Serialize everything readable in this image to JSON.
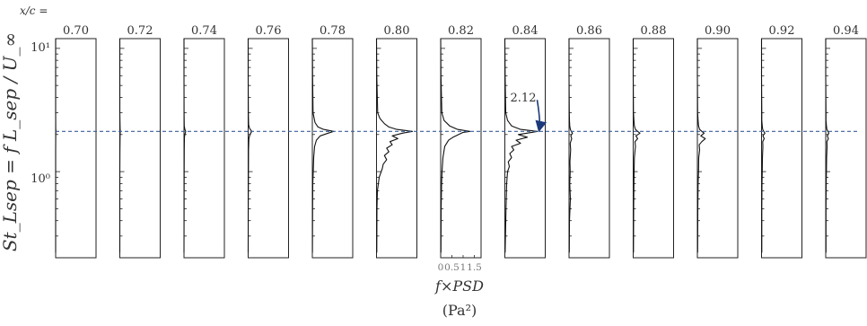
{
  "chart_data": {
    "type": "line",
    "x_header": "x/c =",
    "panels": [
      "0.70",
      "0.72",
      "0.74",
      "0.76",
      "0.78",
      "0.80",
      "0.82",
      "0.84",
      "0.86",
      "0.88",
      "0.90",
      "0.92",
      "0.94"
    ],
    "y_scale": "log",
    "y_range": [
      0.2,
      12
    ],
    "y_ticks": [
      1,
      10
    ],
    "y_tick_labels": [
      "10⁰",
      "10¹"
    ],
    "ylabel": "St_Lsep = f L_sep / U_∞",
    "x_range": [
      0,
      1.8
    ],
    "x_ticks": [
      0,
      0.5,
      1,
      1.5
    ],
    "x_tick_labels": [
      "0",
      "0.5",
      "1",
      "1.5"
    ],
    "x_ticks_panel": "0.82",
    "xlabel_line1": "f×PSD",
    "xlabel_line2": "(Pa²)",
    "reference_line": {
      "value": 2.12,
      "label": "2.12",
      "panel": "0.84",
      "style": "dashed",
      "color": "#3a5f9a"
    },
    "annotation_color": "#1c3a7a",
    "series": [
      {
        "panel": "0.70",
        "y": [
          0.22,
          0.5,
          1.0,
          1.5,
          2.0,
          2.12,
          2.25,
          3,
          6,
          12
        ],
        "x": [
          0,
          0,
          0,
          0,
          0.005,
          0.01,
          0.005,
          0,
          0,
          0
        ]
      },
      {
        "panel": "0.72",
        "y": [
          0.22,
          0.5,
          1.0,
          1.5,
          2.0,
          2.12,
          2.25,
          3,
          6,
          12
        ],
        "x": [
          0,
          0,
          0,
          0.002,
          0.01,
          0.02,
          0.01,
          0,
          0,
          0
        ]
      },
      {
        "panel": "0.74",
        "y": [
          0.22,
          0.5,
          1.0,
          1.5,
          1.9,
          2.05,
          2.12,
          2.2,
          2.35,
          3,
          6,
          12
        ],
        "x": [
          0,
          0.005,
          0.008,
          0.01,
          0.02,
          0.05,
          0.08,
          0.04,
          0.01,
          0.005,
          0,
          0
        ]
      },
      {
        "panel": "0.76",
        "y": [
          0.22,
          0.5,
          1.0,
          1.5,
          1.85,
          2.0,
          2.12,
          2.25,
          2.4,
          3,
          6,
          12
        ],
        "x": [
          0,
          0.005,
          0.01,
          0.015,
          0.03,
          0.08,
          0.16,
          0.06,
          0.02,
          0.008,
          0,
          0
        ]
      },
      {
        "panel": "0.78",
        "y": [
          0.22,
          0.5,
          0.8,
          1.0,
          1.3,
          1.6,
          1.8,
          1.95,
          2.05,
          2.12,
          2.2,
          2.3,
          2.5,
          3,
          6,
          12
        ],
        "x": [
          0.005,
          0.01,
          0.02,
          0.04,
          0.06,
          0.1,
          0.18,
          0.35,
          0.7,
          0.95,
          0.5,
          0.25,
          0.12,
          0.03,
          0.01,
          0
        ]
      },
      {
        "panel": "0.80",
        "y": [
          0.22,
          0.5,
          0.7,
          0.9,
          1.05,
          1.15,
          1.25,
          1.35,
          1.45,
          1.55,
          1.65,
          1.75,
          1.85,
          1.95,
          2.05,
          2.12,
          2.2,
          2.3,
          2.45,
          2.7,
          3,
          6,
          12
        ],
        "x": [
          0.01,
          0.02,
          0.04,
          0.12,
          0.25,
          0.3,
          0.45,
          0.35,
          0.55,
          0.45,
          0.7,
          0.6,
          0.95,
          0.7,
          1.15,
          1.6,
          0.9,
          0.55,
          0.35,
          0.15,
          0.05,
          0.01,
          0
        ]
      },
      {
        "panel": "0.82",
        "y": [
          0.22,
          0.5,
          0.8,
          1.0,
          1.3,
          1.6,
          1.8,
          1.9,
          2.0,
          2.08,
          2.12,
          2.2,
          2.35,
          2.6,
          3,
          6,
          12
        ],
        "x": [
          0.01,
          0.02,
          0.04,
          0.06,
          0.1,
          0.18,
          0.35,
          0.55,
          0.8,
          1.0,
          1.3,
          0.75,
          0.4,
          0.15,
          0.05,
          0.01,
          0
        ]
      },
      {
        "panel": "0.84",
        "y": [
          0.22,
          0.5,
          0.8,
          1.0,
          1.1,
          1.2,
          1.3,
          1.4,
          1.5,
          1.6,
          1.7,
          1.8,
          1.9,
          2.0,
          2.08,
          2.12,
          2.2,
          2.35,
          2.6,
          3,
          6,
          12
        ],
        "x": [
          0.01,
          0.05,
          0.08,
          0.12,
          0.2,
          0.15,
          0.3,
          0.22,
          0.4,
          0.3,
          0.7,
          0.5,
          1.0,
          0.6,
          1.2,
          1.45,
          0.7,
          0.3,
          0.12,
          0.04,
          0.01,
          0
        ]
      },
      {
        "panel": "0.86",
        "y": [
          0.22,
          0.4,
          0.6,
          0.8,
          1.0,
          1.2,
          1.5,
          1.7,
          1.85,
          1.95,
          2.05,
          2.12,
          2.2,
          2.35,
          2.6,
          3,
          6,
          12
        ],
        "x": [
          0.01,
          0.02,
          0.06,
          0.03,
          0.05,
          0.04,
          0.07,
          0.05,
          0.12,
          0.08,
          0.15,
          0.1,
          0.06,
          0.03,
          0.02,
          0.01,
          0,
          0
        ]
      },
      {
        "panel": "0.88",
        "y": [
          0.22,
          0.5,
          0.8,
          1.0,
          1.3,
          1.6,
          1.75,
          1.85,
          1.95,
          2.05,
          2.12,
          2.2,
          2.35,
          2.6,
          3,
          6,
          12
        ],
        "x": [
          0.01,
          0.02,
          0.03,
          0.04,
          0.05,
          0.1,
          0.08,
          0.2,
          0.12,
          0.3,
          0.2,
          0.1,
          0.05,
          0.03,
          0.01,
          0,
          0
        ]
      },
      {
        "panel": "0.90",
        "y": [
          0.22,
          0.5,
          0.8,
          1.0,
          1.3,
          1.5,
          1.65,
          1.75,
          1.85,
          1.95,
          2.05,
          2.12,
          2.2,
          2.35,
          2.6,
          3,
          6,
          12
        ],
        "x": [
          0.01,
          0.02,
          0.03,
          0.05,
          0.06,
          0.1,
          0.08,
          0.2,
          0.35,
          0.15,
          0.3,
          0.2,
          0.1,
          0.05,
          0.03,
          0.01,
          0,
          0
        ]
      },
      {
        "panel": "0.92",
        "y": [
          0.22,
          0.5,
          0.8,
          1.0,
          1.3,
          1.6,
          1.75,
          1.85,
          1.95,
          2.05,
          2.12,
          2.2,
          2.35,
          2.6,
          3,
          6,
          12
        ],
        "x": [
          0.01,
          0.01,
          0.02,
          0.03,
          0.04,
          0.06,
          0.05,
          0.12,
          0.06,
          0.15,
          0.1,
          0.05,
          0.03,
          0.01,
          0.01,
          0,
          0
        ]
      },
      {
        "panel": "0.94",
        "y": [
          0.22,
          0.5,
          0.8,
          1.0,
          1.3,
          1.6,
          1.75,
          1.85,
          1.95,
          2.05,
          2.12,
          2.2,
          2.35,
          2.6,
          3,
          6,
          12
        ],
        "x": [
          0.01,
          0.01,
          0.02,
          0.03,
          0.04,
          0.06,
          0.05,
          0.12,
          0.07,
          0.14,
          0.1,
          0.05,
          0.03,
          0.01,
          0.01,
          0,
          0
        ]
      }
    ]
  }
}
